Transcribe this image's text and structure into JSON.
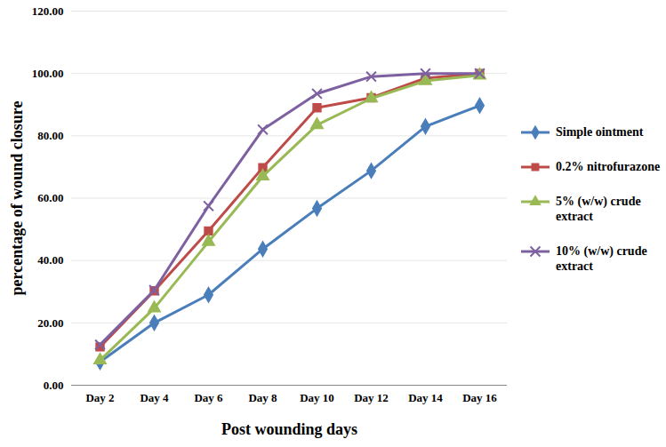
{
  "chart_data": {
    "type": "line",
    "x_label": "Post wounding days",
    "y_label": "percentage of wound closure",
    "categories": [
      "Day 2",
      "Day 4",
      "Day 6",
      "Day 8",
      "Day 10",
      "Day 12",
      "Day 14",
      "Day 16"
    ],
    "series": [
      {
        "name": "Simple ointment",
        "color": "#4a7ebb",
        "marker": "diamond",
        "values": [
          7.5,
          20,
          29,
          43.7,
          56.7,
          68.8,
          83,
          89.7
        ]
      },
      {
        "name": "0.2% nitrofurazone",
        "color": "#be4b48",
        "marker": "square",
        "values": [
          12.3,
          30.3,
          49.5,
          69.8,
          89,
          92.2,
          98.5,
          100
        ]
      },
      {
        "name": "5% (w/w) crude extract",
        "color": "#98b954",
        "marker": "triangle",
        "values": [
          8,
          24.7,
          46,
          67,
          83.5,
          92,
          97.6,
          99.4
        ]
      },
      {
        "name": "10% (w/w) crude extract",
        "color": "#7d60a0",
        "marker": "x",
        "values": [
          13,
          30.5,
          57.5,
          82,
          93.5,
          99,
          100,
          100
        ]
      }
    ],
    "ylim": [
      0,
      120
    ],
    "yticks": [
      {
        "value": 0,
        "label": "0.00"
      },
      {
        "value": 20,
        "label": "20.00"
      },
      {
        "value": 40,
        "label": "40.00"
      },
      {
        "value": 60,
        "label": "60.00"
      },
      {
        "value": 80,
        "label": "80.00"
      },
      {
        "value": 100,
        "label": "100.00"
      },
      {
        "value": 120,
        "label": "120.00"
      }
    ],
    "grid": true,
    "legend": "right"
  }
}
